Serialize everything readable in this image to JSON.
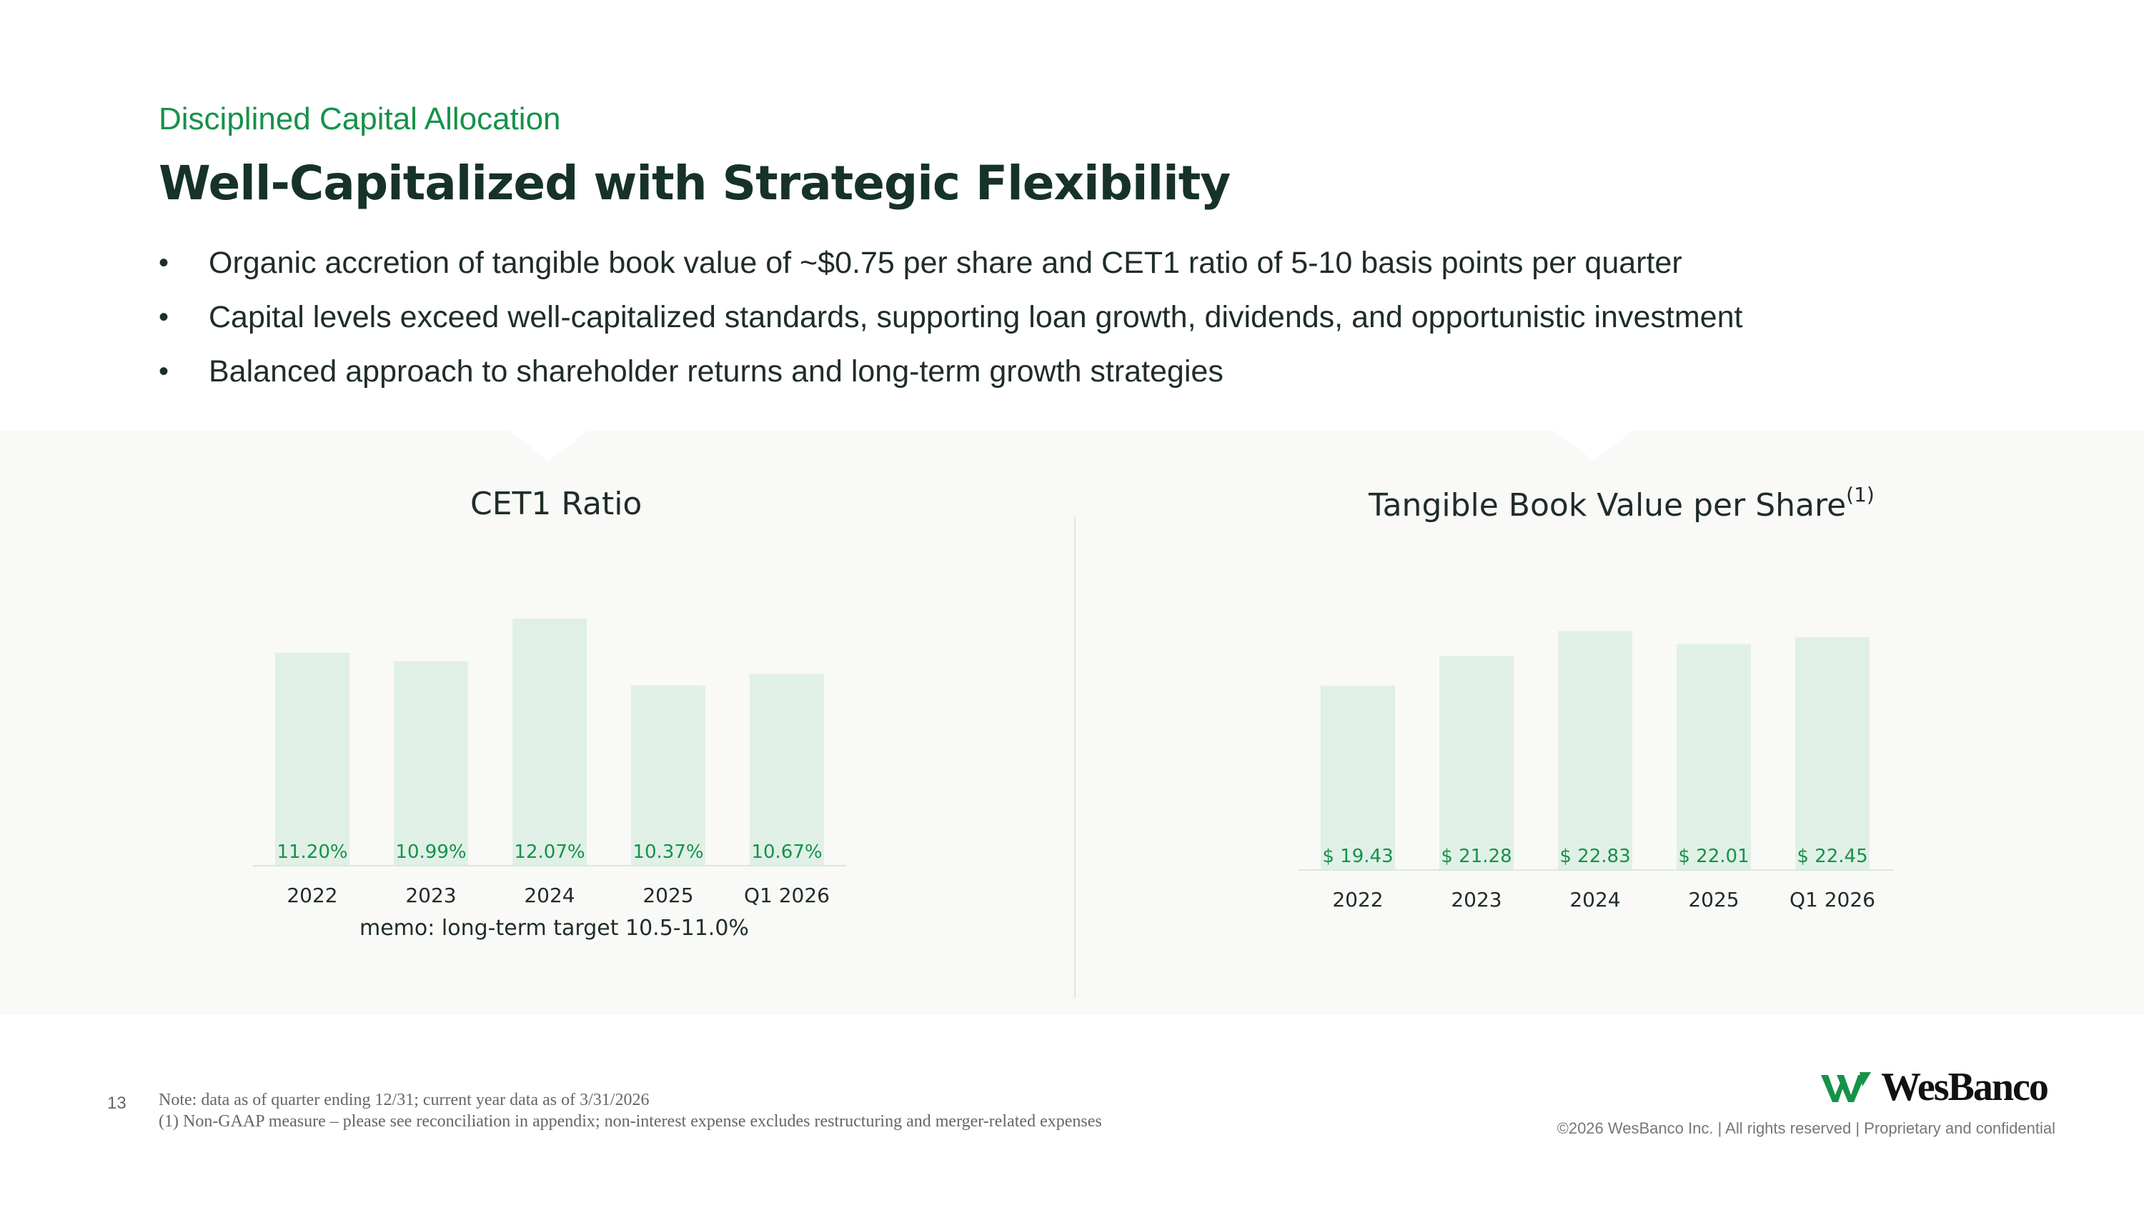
{
  "header": {
    "kicker": "Disciplined Capital Allocation",
    "title": "Well-Capitalized with Strategic Flexibility"
  },
  "bullets": [
    "Organic accretion of tangible book value of ~$0.75 per share and CET1 ratio of 5-10 basis points per quarter",
    "Capital levels exceed well-capitalized standards, supporting loan growth, dividends, and opportunistic investment",
    "Balanced approach to shareholder returns and long-term growth strategies"
  ],
  "chart_data": [
    {
      "type": "bar",
      "title": "CET1 Ratio",
      "categories": [
        "2022",
        "2023",
        "2024",
        "2025",
        "Q1 2026"
      ],
      "values": [
        11.2,
        10.99,
        12.07,
        10.37,
        10.67
      ],
      "value_labels": [
        "11.20%",
        "10.99%",
        "12.07%",
        "10.37%",
        "10.67%"
      ],
      "note": "memo: long-term target 10.5-11.0%",
      "ylim": [
        5.8,
        12.9
      ]
    },
    {
      "type": "bar",
      "title": "Tangible Book Value per Share",
      "title_superscript": "(1)",
      "categories": [
        "2022",
        "2023",
        "2024",
        "2025",
        "Q1 2026"
      ],
      "values": [
        19.43,
        21.28,
        22.83,
        22.01,
        22.45
      ],
      "value_labels": [
        "$ 19.43",
        "$ 21.28",
        "$ 22.83",
        "$ 22.01",
        "$ 22.45"
      ],
      "ylim": [
        7.95,
        24.5
      ]
    }
  ],
  "footer": {
    "page_number": "13",
    "note1": "Note: data as of quarter ending 12/31; current year data as of 3/31/2026",
    "note2": "(1) Non-GAAP measure – please see reconciliation in appendix; non-interest expense excludes restructuring and merger-related expenses",
    "logo_text": "WesBanco",
    "copyright": "©2026 WesBanco Inc.  |  All rights reserved  |  Proprietary and confidential"
  },
  "colors": {
    "accent": "#15924a",
    "bar": "#e1f0e6",
    "panel": "#f9f9f7"
  }
}
